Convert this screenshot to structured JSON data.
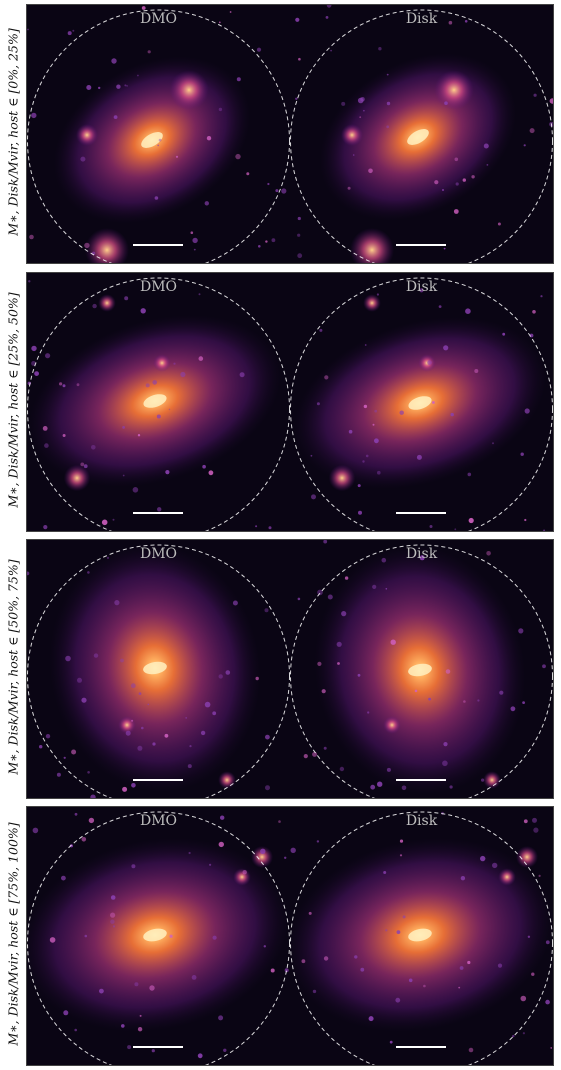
{
  "rows": [
    {
      "label": "M∗, Disk/Mvir, host ∈ [0%, 25%]"
    },
    {
      "label": "M∗, Disk/Mvir, host ∈ [25%, 50%]"
    },
    {
      "label": "M∗, Disk/Mvir, host ∈ [50%, 75%]"
    },
    {
      "label": "M∗, Disk/Mvir, host ∈ [75%, 100%]"
    }
  ],
  "panels": {
    "left_title": "DMO",
    "right_title": "Disk"
  },
  "colors": {
    "background": "#0a0514",
    "halo_core": "#ffe09a",
    "halo_mid": "#ff7a3a",
    "halo_outer": "#7a1e9a",
    "circle": "#ffffff",
    "scalebar": "#ffffff"
  }
}
